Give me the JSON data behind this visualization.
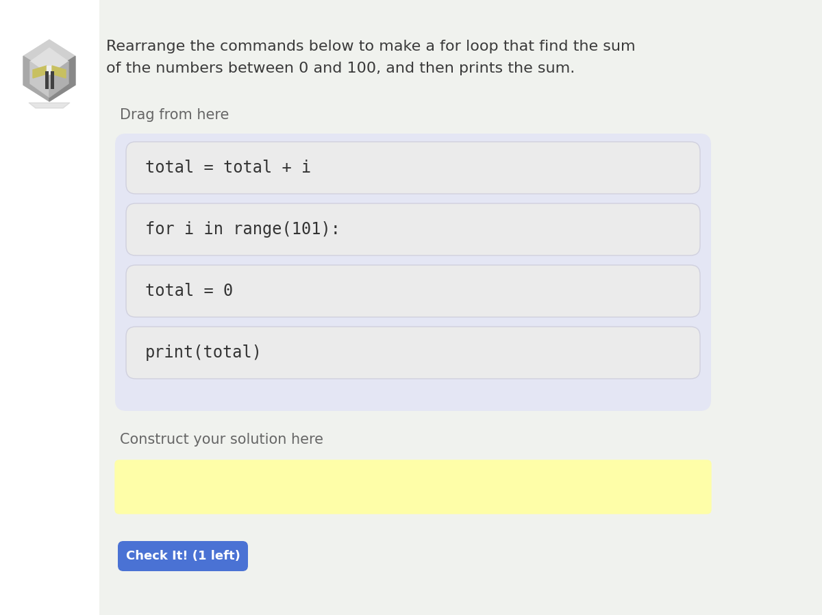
{
  "bg_color_left": "#ffffff",
  "bg_color_main": "#f0f2ee",
  "title_text_line1": "Rearrange the commands below to make a for loop that find the sum",
  "title_text_line2": "of the numbers between 0 and 100, and then prints the sum.",
  "drag_label": "Drag from here",
  "construct_label": "Construct your solution here",
  "code_blocks": [
    "total = total + i",
    "for i in range(101):",
    "total = 0",
    "print(total)"
  ],
  "code_block_bg": "#ebebeb",
  "code_block_border": "#d0d0de",
  "drag_area_bg": "#e4e6f4",
  "code_font_size": 17,
  "label_font_size": 15,
  "title_font_size": 16,
  "yellow_box_color": "#fefea8",
  "yellow_box_border": "#fefea8",
  "button_color": "#4a72d4",
  "button_text": "Check It! (1 left)",
  "button_text_color": "#ffffff",
  "button_font_size": 13,
  "text_color_dark": "#3a3a3a",
  "text_color_label": "#666666"
}
